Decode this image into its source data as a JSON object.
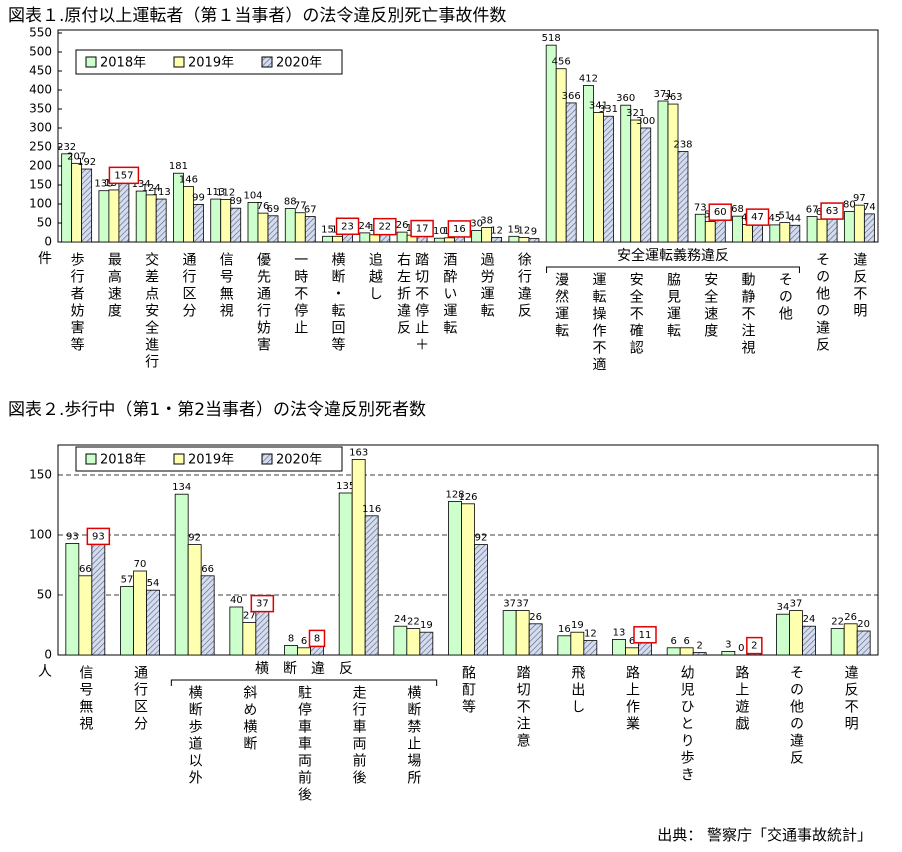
{
  "chart_data": [
    {
      "type": "bar",
      "title": "図表１.原付以上運転者（第１当事者）の法令違反別死亡事故件数",
      "y_label": "件",
      "categories": [
        "歩行者妨害等",
        "最高速度",
        "交差点安全進行",
        "通行区分",
        "信号無視",
        "優先通行妨害",
        "一時不停止",
        "横断・転回等",
        "追越し",
        "踏切不停止＋\n右左折違反",
        "酒酔い運転",
        "過労運転",
        "徐行違反",
        "漫然運転",
        "運転操作不適",
        "安全不確認",
        "脇見運転",
        "安全速度",
        "動静不注視",
        "その他",
        "その他の違反",
        "違反不明"
      ],
      "series": [
        {
          "name": "2018年",
          "color": "#ccffcc",
          "values": [
            232,
            135,
            134,
            181,
            113,
            104,
            88,
            15,
            24,
            26,
            10,
            30,
            15,
            518,
            412,
            360,
            371,
            73,
            68,
            45,
            67,
            80
          ]
        },
        {
          "name": "2019年",
          "color": "#ffffb0",
          "values": [
            207,
            137,
            124,
            146,
            112,
            76,
            77,
            15,
            19,
            18,
            11,
            38,
            12,
            456,
            341,
            321,
            363,
            54,
            46,
            51,
            60,
            97
          ]
        },
        {
          "name": "2020年",
          "color": "#d4dcf0",
          "pattern": "hatch",
          "values": [
            192,
            157,
            113,
            99,
            89,
            69,
            67,
            23,
            22,
            17,
            16,
            12,
            9,
            366,
            331,
            300,
            238,
            60,
            47,
            44,
            63,
            74
          ]
        }
      ],
      "highlight": [
        1,
        7,
        8,
        9,
        10,
        17,
        18,
        20
      ],
      "group": {
        "label": "安全運転義務違反",
        "from": 13,
        "to": 19
      },
      "ylim": [
        0,
        550
      ],
      "yticks": [
        0,
        50,
        100,
        150,
        200,
        250,
        300,
        350,
        400,
        450,
        500,
        550
      ],
      "grid": false
    },
    {
      "type": "bar",
      "title": "図表２.歩行中（第1・第2当事者）の法令違反別死者数",
      "y_label": "人",
      "categories": [
        "信号無視",
        "通行区分",
        "横断歩道以外",
        "斜め横断",
        "駐停車車両前後",
        "走行車両前後",
        "横断禁止場所",
        "酩酊等",
        "踏切不注意",
        "飛出し",
        "路上作業",
        "幼児ひとり歩き",
        "路上遊戯",
        "その他の違反",
        "違反不明"
      ],
      "series": [
        {
          "name": "2018年",
          "color": "#ccffcc",
          "values": [
            93,
            57,
            134,
            40,
            8,
            135,
            24,
            128,
            37,
            16,
            13,
            6,
            3,
            34,
            22
          ]
        },
        {
          "name": "2019年",
          "color": "#ffffb0",
          "values": [
            66,
            70,
            92,
            27,
            6,
            163,
            22,
            126,
            37,
            19,
            6,
            6,
            0,
            37,
            26
          ]
        },
        {
          "name": "2020年",
          "color": "#d4dcf0",
          "pattern": "hatch",
          "values": [
            93,
            54,
            66,
            37,
            8,
            116,
            19,
            92,
            26,
            12,
            11,
            2,
            2,
            24,
            20
          ]
        }
      ],
      "highlight": [
        0,
        3,
        4,
        10,
        12
      ],
      "group": {
        "label": "横　断　違　反",
        "from": 2,
        "to": 6
      },
      "ylim": [
        0,
        175
      ],
      "yticks": [
        0,
        50,
        100,
        150
      ],
      "grid": true
    }
  ],
  "source": "出典： 警察庁「交通事故統計」"
}
